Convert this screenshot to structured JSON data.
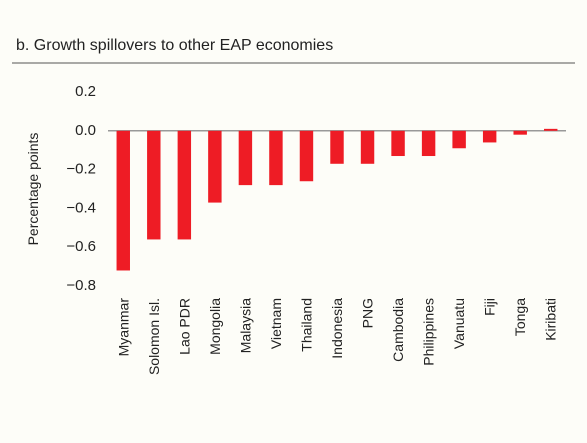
{
  "chart_data": {
    "type": "bar",
    "title": "b. Growth spillovers to other EAP economies",
    "y_label": "Percentage points",
    "categories": [
      "Myanmar",
      "Solomon Isl.",
      "Lao PDR",
      "Mongolia",
      "Malaysia",
      "Vietnam",
      "Thailand",
      "Indonesia",
      "PNG",
      "Cambodia",
      "Philippines",
      "Vanuatu",
      "Fiji",
      "Tonga",
      "Kiribati"
    ],
    "values": [
      -0.72,
      -0.56,
      -0.56,
      -0.37,
      -0.28,
      -0.28,
      -0.26,
      -0.17,
      -0.17,
      -0.13,
      -0.13,
      -0.09,
      -0.06,
      -0.02,
      0.01
    ],
    "color": "#ee1c25",
    "ylim": [
      -0.8,
      0.2
    ],
    "yticks": [
      {
        "value": 0.2,
        "label": "0.2"
      },
      {
        "value": 0,
        "label": "0.0"
      },
      {
        "value": -0.2,
        "label": "−0.2"
      },
      {
        "value": -0.4,
        "label": "−0.4"
      },
      {
        "value": -0.6,
        "label": "−0.6"
      },
      {
        "value": -0.8,
        "label": "−0.8"
      }
    ]
  }
}
